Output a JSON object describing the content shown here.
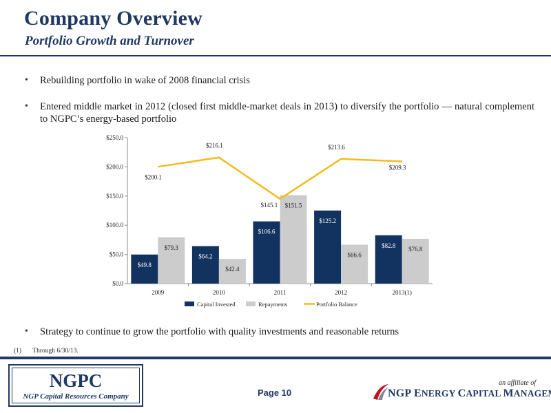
{
  "header": {
    "title": "Company Overview",
    "subtitle": "Portfolio Growth and Turnover"
  },
  "bullets": [
    "Rebuilding portfolio in wake of 2008 financial crisis",
    "Entered middle market in 2012 (closed first middle-market deals in 2013) to diversify the portfolio — natural complement to NGPC’s energy-based portfolio",
    "Strategy to continue to grow the portfolio with quality investments and reasonable returns"
  ],
  "footnote": {
    "marker": "(1)",
    "text": "Through 6/30/13."
  },
  "chart_data": {
    "type": "bar",
    "categories": [
      "2009",
      "2010",
      "2011",
      "2012",
      "2013(1)"
    ],
    "series": [
      {
        "name": "Capital Invested",
        "type": "bar",
        "color": "#12325f",
        "values": [
          49.8,
          64.2,
          106.6,
          125.2,
          82.8
        ],
        "labels": [
          "$49.8",
          "$64.2",
          "$106.6",
          "$125.2",
          "$82.8"
        ]
      },
      {
        "name": "Repayments",
        "type": "bar",
        "color": "#cccccc",
        "values": [
          79.3,
          42.4,
          151.5,
          66.6,
          76.8
        ],
        "labels": [
          "$79.3",
          "$42.4",
          "$151.5",
          "$66.6",
          "$76.8"
        ]
      },
      {
        "name": "Portfolio Balance",
        "type": "line",
        "color": "#f2bc1b",
        "values": [
          200.1,
          216.1,
          145.1,
          213.6,
          209.3
        ],
        "labels": [
          "$200.1",
          "$216.1",
          "$145.1",
          "$213.6",
          "$209.3"
        ]
      }
    ],
    "yticks": [
      "$0.0",
      "$50.0",
      "$100.0",
      "$150.0",
      "$200.0",
      "$250.0"
    ],
    "ylim": [
      0,
      250
    ],
    "grid": false,
    "legend": "bottom"
  },
  "footer": {
    "logo_main": "NGPC",
    "logo_sub": "NGP Capital Resources Company",
    "page_label": "Page 10",
    "affiliate": "an affiliate of",
    "company_ngp": "NGP",
    "company_e": "E",
    "company_nergy": "NERGY",
    "company_c": "C",
    "company_apital": "APITAL",
    "company_m": "M",
    "company_anagement": "ANAGEMENT"
  },
  "colors": {
    "brand_navy": "#1f3864",
    "accent_red": "#c0141c"
  }
}
